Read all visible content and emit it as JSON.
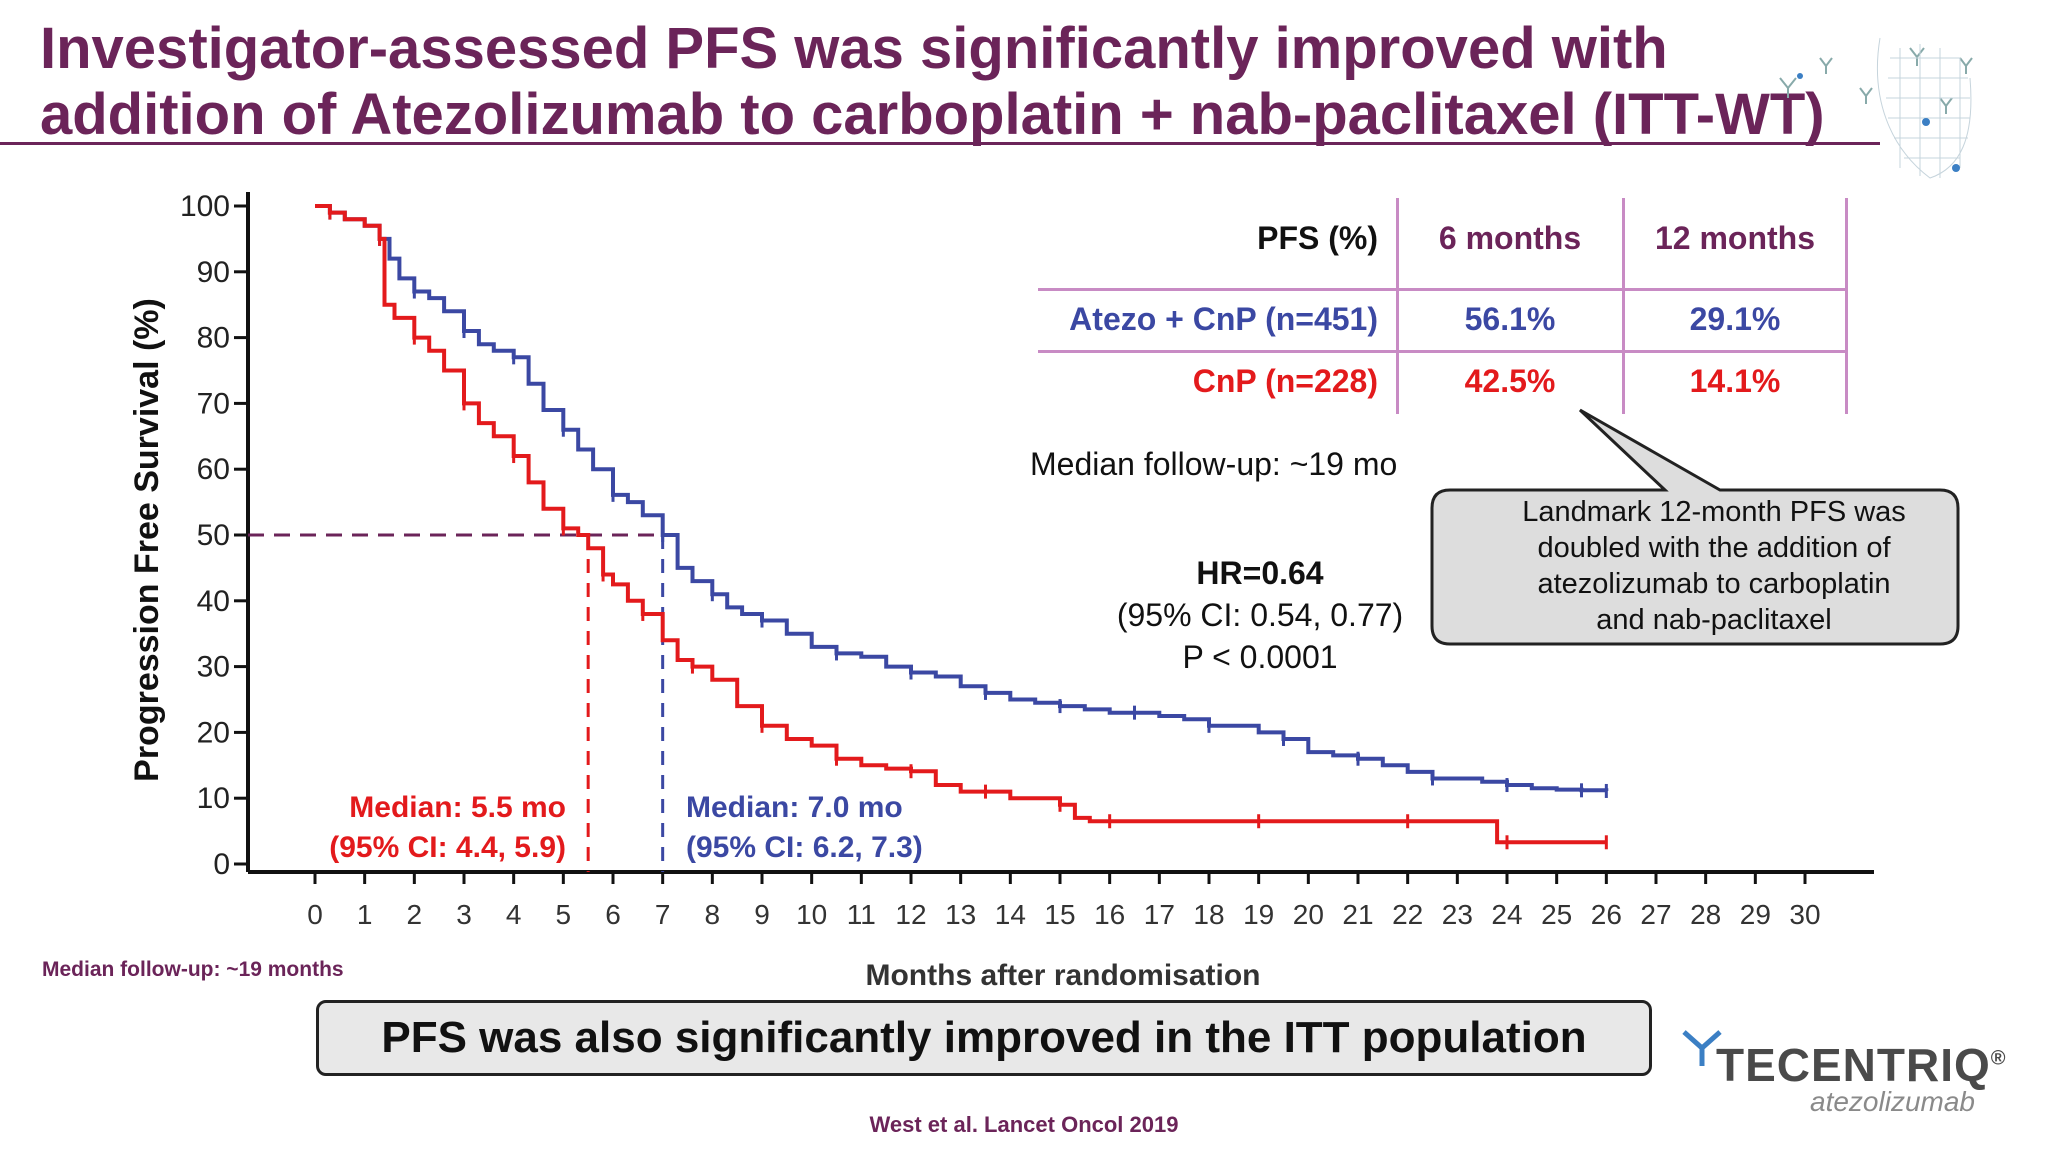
{
  "title": {
    "line1": "Investigator-assessed PFS was significantly improved with",
    "line2": "addition of Atezolizumab to carboplatin + nab-paclitaxel (ITT-WT)"
  },
  "colors": {
    "title": "#6b2459",
    "atezo": "#3b48a3",
    "cnp": "#e31a1c",
    "table_rule": "#c88bc4",
    "median_rule": "#6b2459"
  },
  "table": {
    "header": [
      "PFS (%)",
      "6 months",
      "12 months"
    ],
    "rows": [
      {
        "label": "Atezo + CnP (n=451)",
        "m6": "56.1%",
        "m12": "29.1%"
      },
      {
        "label": "CnP (n=228)",
        "m6": "42.5%",
        "m12": "14.1%"
      }
    ]
  },
  "followup_text": "Median follow-up: ~19 mo",
  "hr": {
    "value": "HR=0.64",
    "ci": "(95% CI: 0.54, 0.77)",
    "p": "P < 0.0001"
  },
  "callout": {
    "lines": [
      "Landmark 12-month PFS was",
      "doubled with the addition of",
      "atezolizumab to carboplatin",
      "and nab-paclitaxel"
    ]
  },
  "medians": {
    "cnp": {
      "line1": "Median: 5.5 mo",
      "line2": "(95% CI: 4.4, 5.9)"
    },
    "atezo": {
      "line1": "Median: 7.0 mo",
      "line2": "(95% CI: 6.2, 7.3)"
    }
  },
  "footnote": "Median follow-up: ~19 months",
  "banner": "PFS was also significantly improved in the ITT population",
  "logo": {
    "word": "TECENTRIQ",
    "mark": "®",
    "sub": "atezolizumab"
  },
  "citation": "West et al. Lancet Oncol 2019",
  "chart_data": {
    "type": "line",
    "title": "",
    "xlabel": "Months after randomisation",
    "ylabel": "Progression Free Survival (%)",
    "xlim": [
      0,
      30
    ],
    "ylim": [
      0,
      100
    ],
    "xticks": [
      "0",
      "1",
      "2",
      "3",
      "4",
      "5",
      "6",
      "7",
      "8",
      "9",
      "10",
      "11",
      "12",
      "13",
      "14",
      "15",
      "16",
      "17",
      "18",
      "19",
      "20",
      "21",
      "22",
      "23",
      "24",
      "25",
      "26",
      "27",
      "28",
      "29",
      "30"
    ],
    "yticks": [
      "0",
      "10",
      "20",
      "30",
      "40",
      "50",
      "60",
      "70",
      "80",
      "90",
      "100"
    ],
    "grid": false,
    "median_reference": {
      "y": 50,
      "x_cnp": 5.5,
      "x_atezo": 7.0
    },
    "series": [
      {
        "name": "Atezo + CnP (n=451)",
        "color": "#3b48a3",
        "x": [
          0,
          0.3,
          0.6,
          1.0,
          1.3,
          1.5,
          1.7,
          2.0,
          2.3,
          2.6,
          3.0,
          3.3,
          3.6,
          4.0,
          4.3,
          4.6,
          5.0,
          5.3,
          5.6,
          6.0,
          6.3,
          6.6,
          7.0,
          7.3,
          7.6,
          8.0,
          8.3,
          8.6,
          9.0,
          9.5,
          10.0,
          10.5,
          11.0,
          11.5,
          12.0,
          12.5,
          13.0,
          13.5,
          14.0,
          14.5,
          15.0,
          15.5,
          16.0,
          16.5,
          17.0,
          17.5,
          18.0,
          18.5,
          19.0,
          19.5,
          20.0,
          20.5,
          21.0,
          21.5,
          22.0,
          22.5,
          23.0,
          23.5,
          24.0,
          24.5,
          25.0,
          25.5,
          26.0
        ],
        "y": [
          100,
          99,
          98,
          97,
          95,
          92,
          89,
          87,
          86,
          84,
          81,
          79,
          78,
          77,
          73,
          69,
          66,
          63,
          60,
          56.1,
          55,
          53,
          50,
          45,
          43,
          41,
          39,
          38,
          37,
          35,
          33,
          32,
          31.5,
          30,
          29.1,
          28.5,
          27,
          26,
          25,
          24.5,
          24,
          23.5,
          23,
          23,
          22.5,
          22,
          21,
          21,
          20,
          19,
          17,
          16.5,
          16,
          15,
          14,
          13,
          13,
          12.5,
          12,
          11.5,
          11.3,
          11.2,
          11.1
        ]
      },
      {
        "name": "CnP (n=228)",
        "color": "#e31a1c",
        "x": [
          0,
          0.3,
          0.6,
          1.0,
          1.3,
          1.4,
          1.6,
          2.0,
          2.3,
          2.6,
          3.0,
          3.3,
          3.6,
          4.0,
          4.3,
          4.6,
          5.0,
          5.3,
          5.5,
          5.8,
          6.0,
          6.3,
          6.6,
          7.0,
          7.3,
          7.6,
          8.0,
          8.5,
          9.0,
          9.5,
          10.0,
          10.5,
          11.0,
          11.5,
          12.0,
          12.5,
          13.0,
          13.5,
          14.0,
          14.5,
          15.0,
          15.3,
          15.6,
          16.0,
          17.0,
          18.0,
          19.0,
          20.0,
          21.0,
          22.0,
          23.0,
          23.8,
          24.0,
          25.0,
          26.0
        ],
        "y": [
          100,
          99,
          98,
          97,
          95,
          85,
          83,
          80,
          78,
          75,
          70,
          67,
          65,
          62,
          58,
          54,
          51,
          50,
          48,
          44,
          42.5,
          40,
          38,
          34,
          31,
          30,
          28,
          24,
          21,
          19,
          18,
          16,
          15,
          14.5,
          14.1,
          12,
          11,
          11,
          10,
          10,
          9,
          7,
          6.5,
          6.5,
          6.5,
          6.5,
          6.5,
          6.5,
          6.5,
          6.5,
          6.5,
          3.3,
          3.3,
          3.3,
          3.3
        ]
      }
    ]
  }
}
